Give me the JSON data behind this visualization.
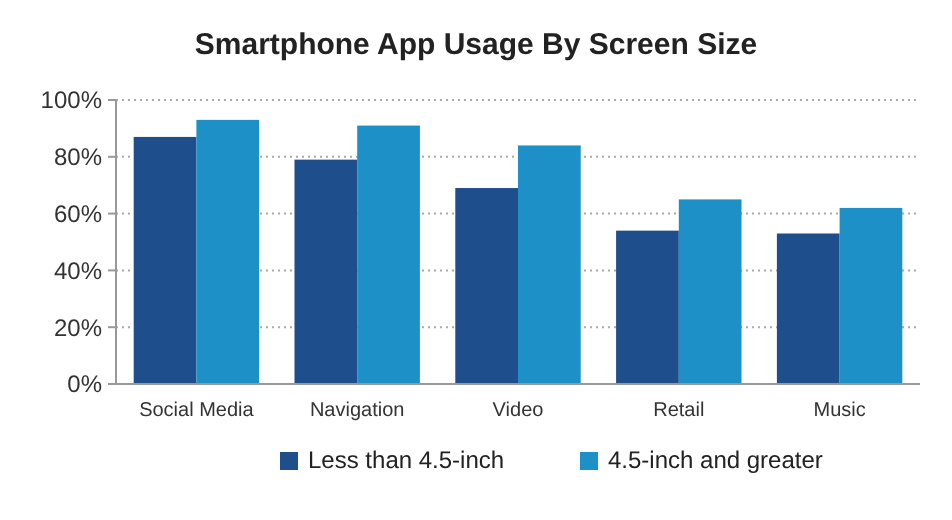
{
  "chart_data": {
    "type": "bar",
    "title": "Smartphone App Usage By Screen Size",
    "categories": [
      "Social Media",
      "Navigation",
      "Video",
      "Retail",
      "Music"
    ],
    "series": [
      {
        "name": "Less than 4.5-inch",
        "color": "#1f4e8c",
        "values": [
          87,
          79,
          69,
          54,
          53
        ]
      },
      {
        "name": "4.5-inch and greater",
        "color": "#1e90c8",
        "values": [
          93,
          91,
          84,
          65,
          62
        ]
      }
    ],
    "ylim": [
      0,
      100
    ],
    "yticks": [
      {
        "value": 0,
        "label": "0%"
      },
      {
        "value": 20,
        "label": "20%"
      },
      {
        "value": 40,
        "label": "40%"
      },
      {
        "value": 60,
        "label": "60%"
      },
      {
        "value": 80,
        "label": "80%"
      },
      {
        "value": 100,
        "label": "100%"
      }
    ],
    "grid": "y",
    "legend": "bottom"
  }
}
